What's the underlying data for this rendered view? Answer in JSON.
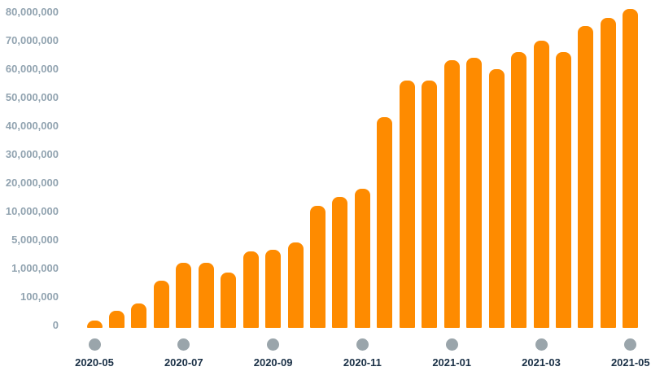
{
  "chart_data": {
    "type": "bar",
    "title": "",
    "xlabel": "",
    "ylabel": "",
    "legend": "none",
    "grid": "off",
    "y_axis": {
      "scale": "non-linear (tick values evenly spaced)",
      "tick_values": [
        0,
        100000,
        1000000,
        5000000,
        10000000,
        20000000,
        30000000,
        40000000,
        50000000,
        60000000,
        70000000,
        80000000
      ],
      "tick_labels": [
        "0",
        "100,000",
        "1,000,000",
        "5,000,000",
        "10,000,000",
        "20,000,000",
        "30,000,000",
        "40,000,000",
        "50,000,000",
        "60,000,000",
        "70,000,000",
        "80,000,000"
      ]
    },
    "x_axis": {
      "tick_marker": "circle-dot",
      "label_every_n_bars": 4,
      "tick_labels": [
        "2020-05",
        "2020-07",
        "2020-09",
        "2020-11",
        "2021-01",
        "2021-03",
        "2021-05"
      ]
    },
    "values": [
      25000,
      60000,
      85000,
      700000,
      2200000,
      2200000,
      950000,
      3700000,
      4000000,
      5000000,
      13000000,
      16000000,
      19000000,
      44000000,
      57000000,
      57000000,
      64000000,
      65000000,
      61000000,
      67000000,
      71000000,
      67000000,
      76000000,
      79000000,
      82000000
    ],
    "colors": {
      "bar": "#fe8b00",
      "y_label": "#91a3b0",
      "x_label": "#1a3046",
      "tick_dot": "#9aa5ab",
      "background": "#ffffff"
    }
  }
}
